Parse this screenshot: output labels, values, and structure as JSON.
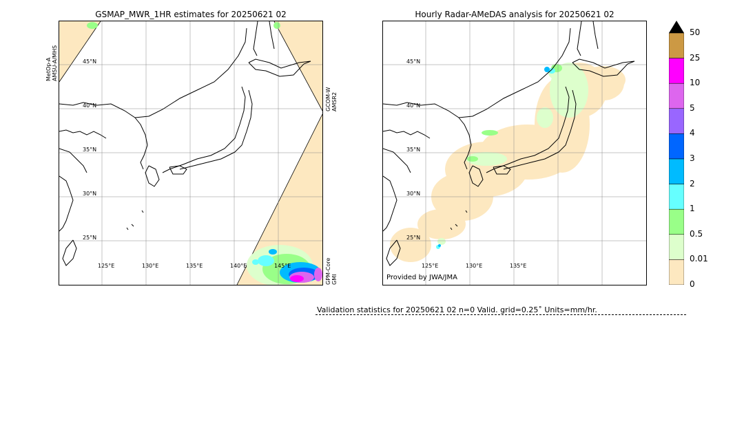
{
  "left_panel": {
    "title": "GSMAP_MWR_1HR estimates for 20250621 02",
    "lat_labels": [
      "45°N",
      "40°N",
      "35°N",
      "30°N",
      "25°N"
    ],
    "lon_labels": [
      "125°E",
      "130°E",
      "135°E",
      "140°E",
      "145°E"
    ],
    "satellite_labels": {
      "left": "MetOp-A AMSU-A/MHS",
      "right_top": "GCOM-W AMSR2",
      "right_bottom": "GPM-Core GMI"
    }
  },
  "right_panel": {
    "title": "Hourly Radar-AMeDAS analysis for 20250621 02",
    "lat_labels": [
      "45°N",
      "40°N",
      "35°N",
      "30°N",
      "25°N"
    ],
    "lon_labels": [
      "125°E",
      "130°E",
      "135°E"
    ],
    "provided_by": "Provided by JWA/JMA"
  },
  "colorbar": {
    "labels": [
      "50",
      "25",
      "10",
      "5",
      "4",
      "3",
      "2",
      "1",
      "0.5",
      "0.01",
      "0"
    ],
    "colors": [
      "#cc9944",
      "#ff00ff",
      "#dd66ee",
      "#9966ff",
      "#0066ff",
      "#00bbff",
      "#66ffff",
      "#99ff88",
      "#ddffcc",
      "#fde8c0"
    ],
    "extend_color": "#000000"
  },
  "validation": {
    "text": "Validation statistics for 20250621 02  n=0 Valid. grid=0.25˚ Units=mm/hr."
  },
  "colors": {
    "no_data": "#fde8c0",
    "coast": "#000000",
    "grid": "#888888"
  }
}
